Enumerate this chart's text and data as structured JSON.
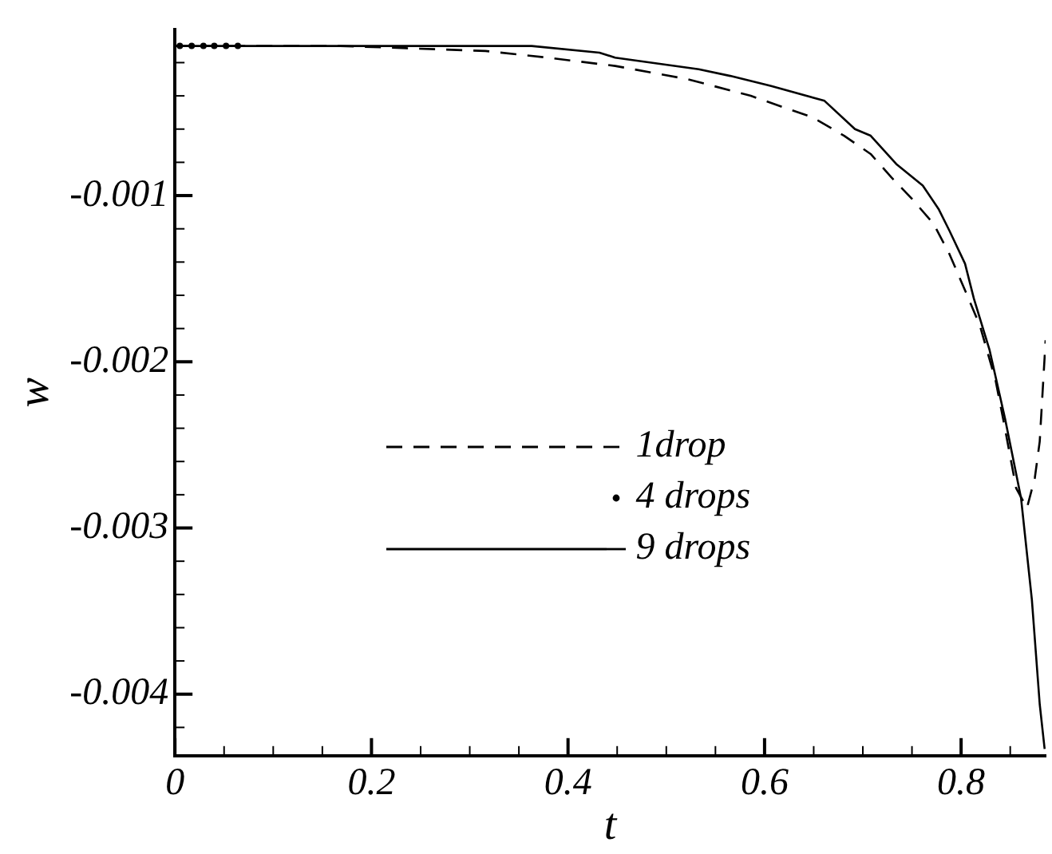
{
  "chart_data": {
    "type": "line",
    "xlabel": "t",
    "ylabel": "w",
    "xlim": [
      0,
      0.886
    ],
    "ylim": [
      -0.00437,
      0
    ],
    "xticks": [
      0,
      {
        "value": 0.05,
        "label": null
      },
      {
        "value": 0.1,
        "label": null
      },
      {
        "value": 0.15,
        "label": null
      },
      0.2,
      {
        "value": 0.25,
        "label": null
      },
      {
        "value": 0.3,
        "label": null
      },
      {
        "value": 0.35,
        "label": null
      },
      0.4,
      {
        "value": 0.45,
        "label": null
      },
      {
        "value": 0.5,
        "label": null
      },
      {
        "value": 0.55,
        "label": null
      },
      0.6,
      {
        "value": 0.65,
        "label": null
      },
      {
        "value": 0.7,
        "label": null
      },
      {
        "value": 0.75,
        "label": null
      },
      0.8,
      {
        "value": 0.85,
        "label": null
      }
    ],
    "yticks": [
      -0.004,
      -0.003,
      -0.002,
      -0.001,
      {
        "value": -0.0042,
        "label": null
      },
      {
        "value": -0.0038,
        "label": null
      },
      {
        "value": -0.0036,
        "label": null
      },
      {
        "value": -0.0034,
        "label": null
      },
      {
        "value": -0.0032,
        "label": null
      },
      {
        "value": -0.0028,
        "label": null
      },
      {
        "value": -0.0026,
        "label": null
      },
      {
        "value": -0.0024,
        "label": null
      },
      {
        "value": -0.0022,
        "label": null
      },
      {
        "value": -0.0018,
        "label": null
      },
      {
        "value": -0.0016,
        "label": null
      },
      {
        "value": -0.0014,
        "label": null
      },
      {
        "value": -0.0012,
        "label": null
      },
      {
        "value": -0.0008,
        "label": null
      },
      {
        "value": -0.0006,
        "label": null
      },
      {
        "value": -0.0004,
        "label": null
      },
      {
        "value": -0.0002,
        "label": null
      }
    ],
    "legend": "center",
    "grid": false,
    "series": [
      {
        "name": "1drop",
        "color": "#000000",
        "line_style": "dashed",
        "marker": "none",
        "x": [
          0,
          0.077,
          0.168,
          0.22,
          0.316,
          0.379,
          0.448,
          0.522,
          0.586,
          0.649,
          0.681,
          0.708,
          0.729,
          0.75,
          0.772,
          0.788,
          0.804,
          0.819,
          0.835,
          0.843,
          0.856,
          0.867,
          0.875,
          0.88,
          0.886
        ],
        "values": [
          -0.0001,
          -0.0001,
          -0.0001,
          -0.00011,
          -0.00013,
          -0.00017,
          -0.00022,
          -0.0003,
          -0.0004,
          -0.00053,
          -0.00064,
          -0.00075,
          -0.00089,
          -0.00102,
          -0.00117,
          -0.00135,
          -0.00157,
          -0.00178,
          -0.00211,
          -0.00235,
          -0.00276,
          -0.00288,
          -0.0027,
          -0.00248,
          -0.00187
        ]
      },
      {
        "name": "4 drops",
        "type": "scatter",
        "color": "#000000",
        "marker": "circle",
        "x": [
          0.005,
          0.017,
          0.029,
          0.04,
          0.052,
          0.064
        ],
        "values": [
          -0.0001,
          -0.0001,
          -0.0001,
          -0.0001,
          -0.0001,
          -0.0001
        ]
      },
      {
        "name": "9 drops",
        "color": "#000000",
        "line_style": "solid",
        "marker": "none",
        "x": [
          0,
          0.363,
          0.432,
          0.448,
          0.533,
          0.565,
          0.606,
          0.661,
          0.692,
          0.708,
          0.734,
          0.761,
          0.777,
          0.788,
          0.804,
          0.813,
          0.829,
          0.845,
          0.861,
          0.872,
          0.88,
          0.885
        ],
        "values": [
          -0.0001,
          -0.0001,
          -0.00014,
          -0.00017,
          -0.00024,
          -0.00028,
          -0.00034,
          -0.00043,
          -0.0006,
          -0.00064,
          -0.00081,
          -0.00094,
          -0.00108,
          -0.00121,
          -0.00141,
          -0.00162,
          -0.00193,
          -0.00235,
          -0.00282,
          -0.00343,
          -0.00406,
          -0.00433
        ]
      }
    ]
  }
}
